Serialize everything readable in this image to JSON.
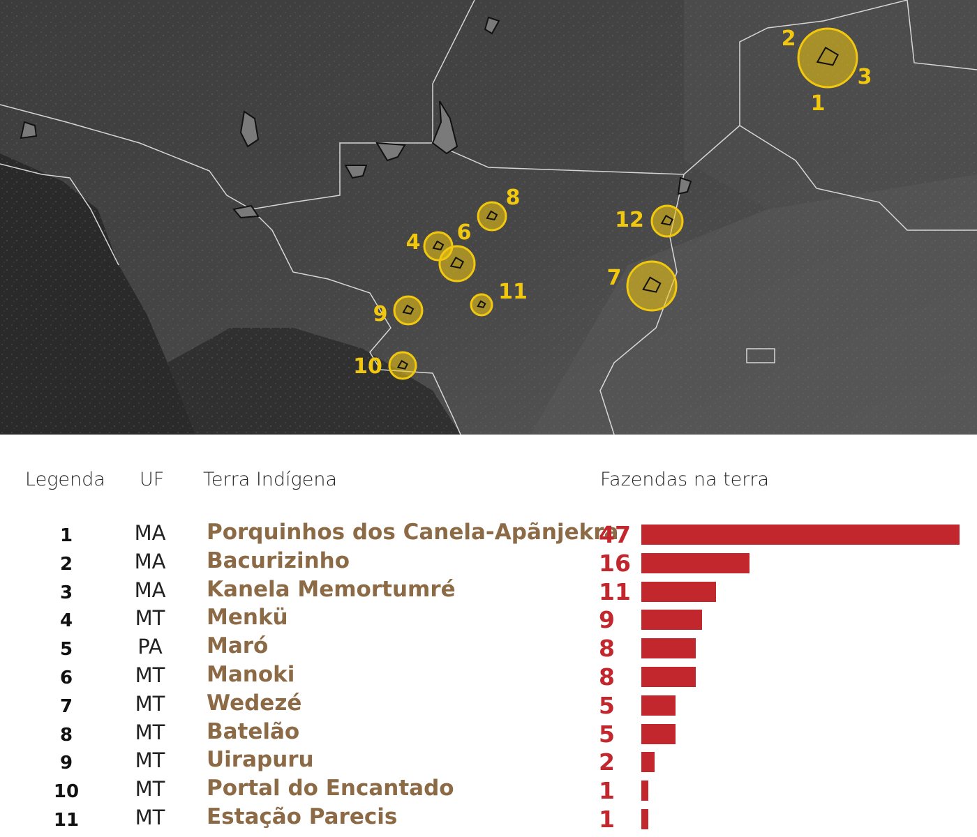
{
  "map": {
    "markers": [
      {
        "id": "1",
        "label": "1",
        "r": 42
      },
      {
        "id": "2",
        "label": "2",
        "r": 42
      },
      {
        "id": "3",
        "label": "3",
        "r": 42
      },
      {
        "id": "4",
        "label": "4",
        "r": 20
      },
      {
        "id": "6",
        "label": "6",
        "r": 25
      },
      {
        "id": "7",
        "label": "7",
        "r": 35
      },
      {
        "id": "8",
        "label": "8",
        "r": 20
      },
      {
        "id": "9",
        "label": "9",
        "r": 20
      },
      {
        "id": "10",
        "label": "10",
        "r": 19
      },
      {
        "id": "11",
        "label": "11",
        "r": 15
      },
      {
        "id": "12",
        "label": "12",
        "r": 22
      }
    ],
    "marker_color": "#f2c80f",
    "background_color": "#3a3a3a"
  },
  "legend": {
    "headers": {
      "legenda": "Legenda",
      "uf": "UF",
      "terra": "Terra Indígena",
      "fazendas": "Fazendas na terra"
    }
  },
  "chart_data": {
    "type": "bar",
    "orientation": "horizontal",
    "categories": [
      "Porquinhos dos Canela-Apãnjekra",
      "Bacurizinho",
      "Kanela Memortumré",
      "Menkü",
      "Maró",
      "Manoki",
      "Wedezé",
      "Batelão",
      "Uirapuru",
      "Portal do Encantado",
      "Estação Parecis"
    ],
    "series": [
      {
        "values": [
          47,
          16,
          11,
          9,
          8,
          8,
          5,
          5,
          2,
          1,
          1
        ]
      }
    ],
    "legend_ids": [
      "1",
      "2",
      "3",
      "4",
      "5",
      "6",
      "7",
      "8",
      "9",
      "10",
      "11"
    ],
    "uf": [
      "MA",
      "MA",
      "MA",
      "MT",
      "PA",
      "MT",
      "MT",
      "MT",
      "MT",
      "MT",
      "MT"
    ],
    "xlim": [
      0,
      47
    ],
    "bar_color": "#c1272d",
    "name_color": "#8b6a45",
    "grid": false
  }
}
